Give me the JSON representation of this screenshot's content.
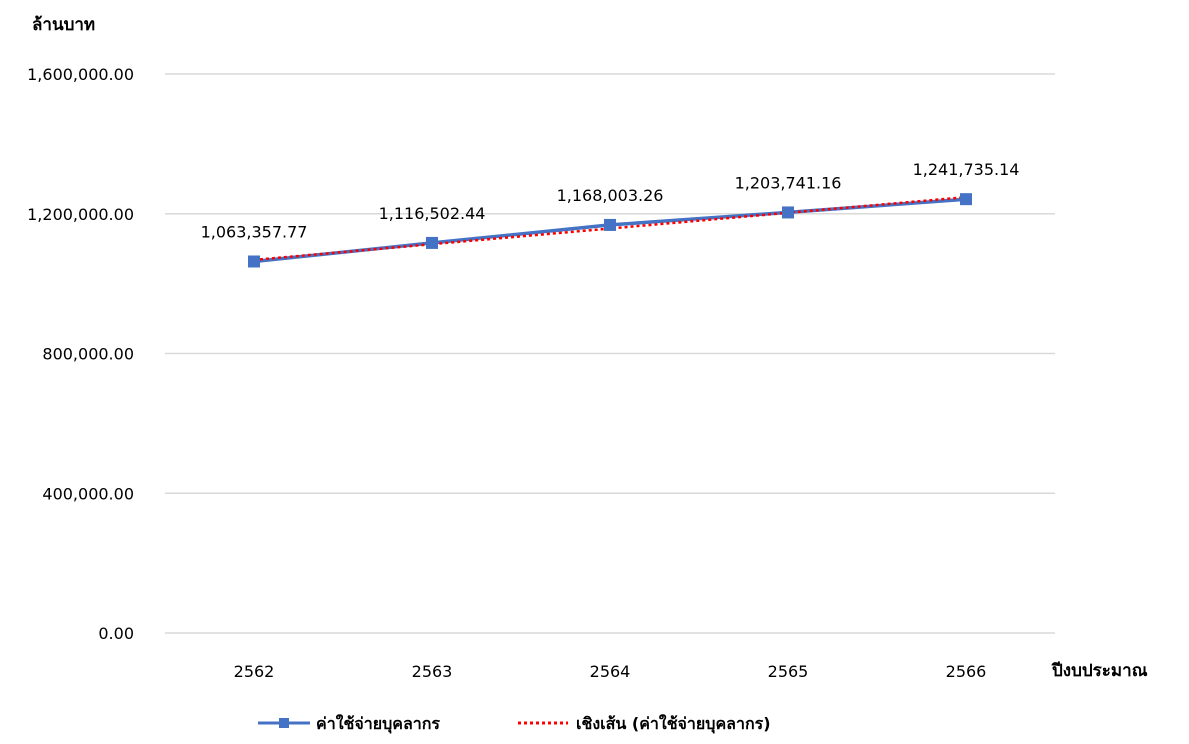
{
  "chart_data": {
    "type": "line",
    "title": "",
    "ylabel": "ล้านบาท",
    "xlabel": "ปีงบประมาณ",
    "categories": [
      "2562",
      "2563",
      "2564",
      "2565",
      "2566"
    ],
    "ylim": [
      0,
      1600000
    ],
    "yticks": [
      0,
      400000,
      800000,
      1200000,
      1600000
    ],
    "ytick_labels": [
      "0.00",
      "400,000.00",
      "800,000.00",
      "1,200,000.00",
      "1,600,000.00"
    ],
    "grid": true,
    "legend_position": "bottom",
    "series": [
      {
        "name": "ค่าใช้จ่ายบุคลากร",
        "values": [
          1063357.77,
          1116502.44,
          1168003.26,
          1203741.16,
          1241735.14
        ],
        "data_labels": [
          "1,063,357.77",
          "1,116,502.44",
          "1,168,003.26",
          "1,203,741.16",
          "1,241,735.14"
        ],
        "color": "#4472C4",
        "style": "solid-square-markers"
      },
      {
        "name": "เชิงเส้น (ค่าใช้จ่ายบุคลากร)",
        "kind": "linear-trendline",
        "values": [
          1068036.94,
          1112938.05,
          1157839.15,
          1202740.26,
          1247641.36
        ],
        "color": "#FF0000",
        "style": "dotted"
      }
    ]
  }
}
